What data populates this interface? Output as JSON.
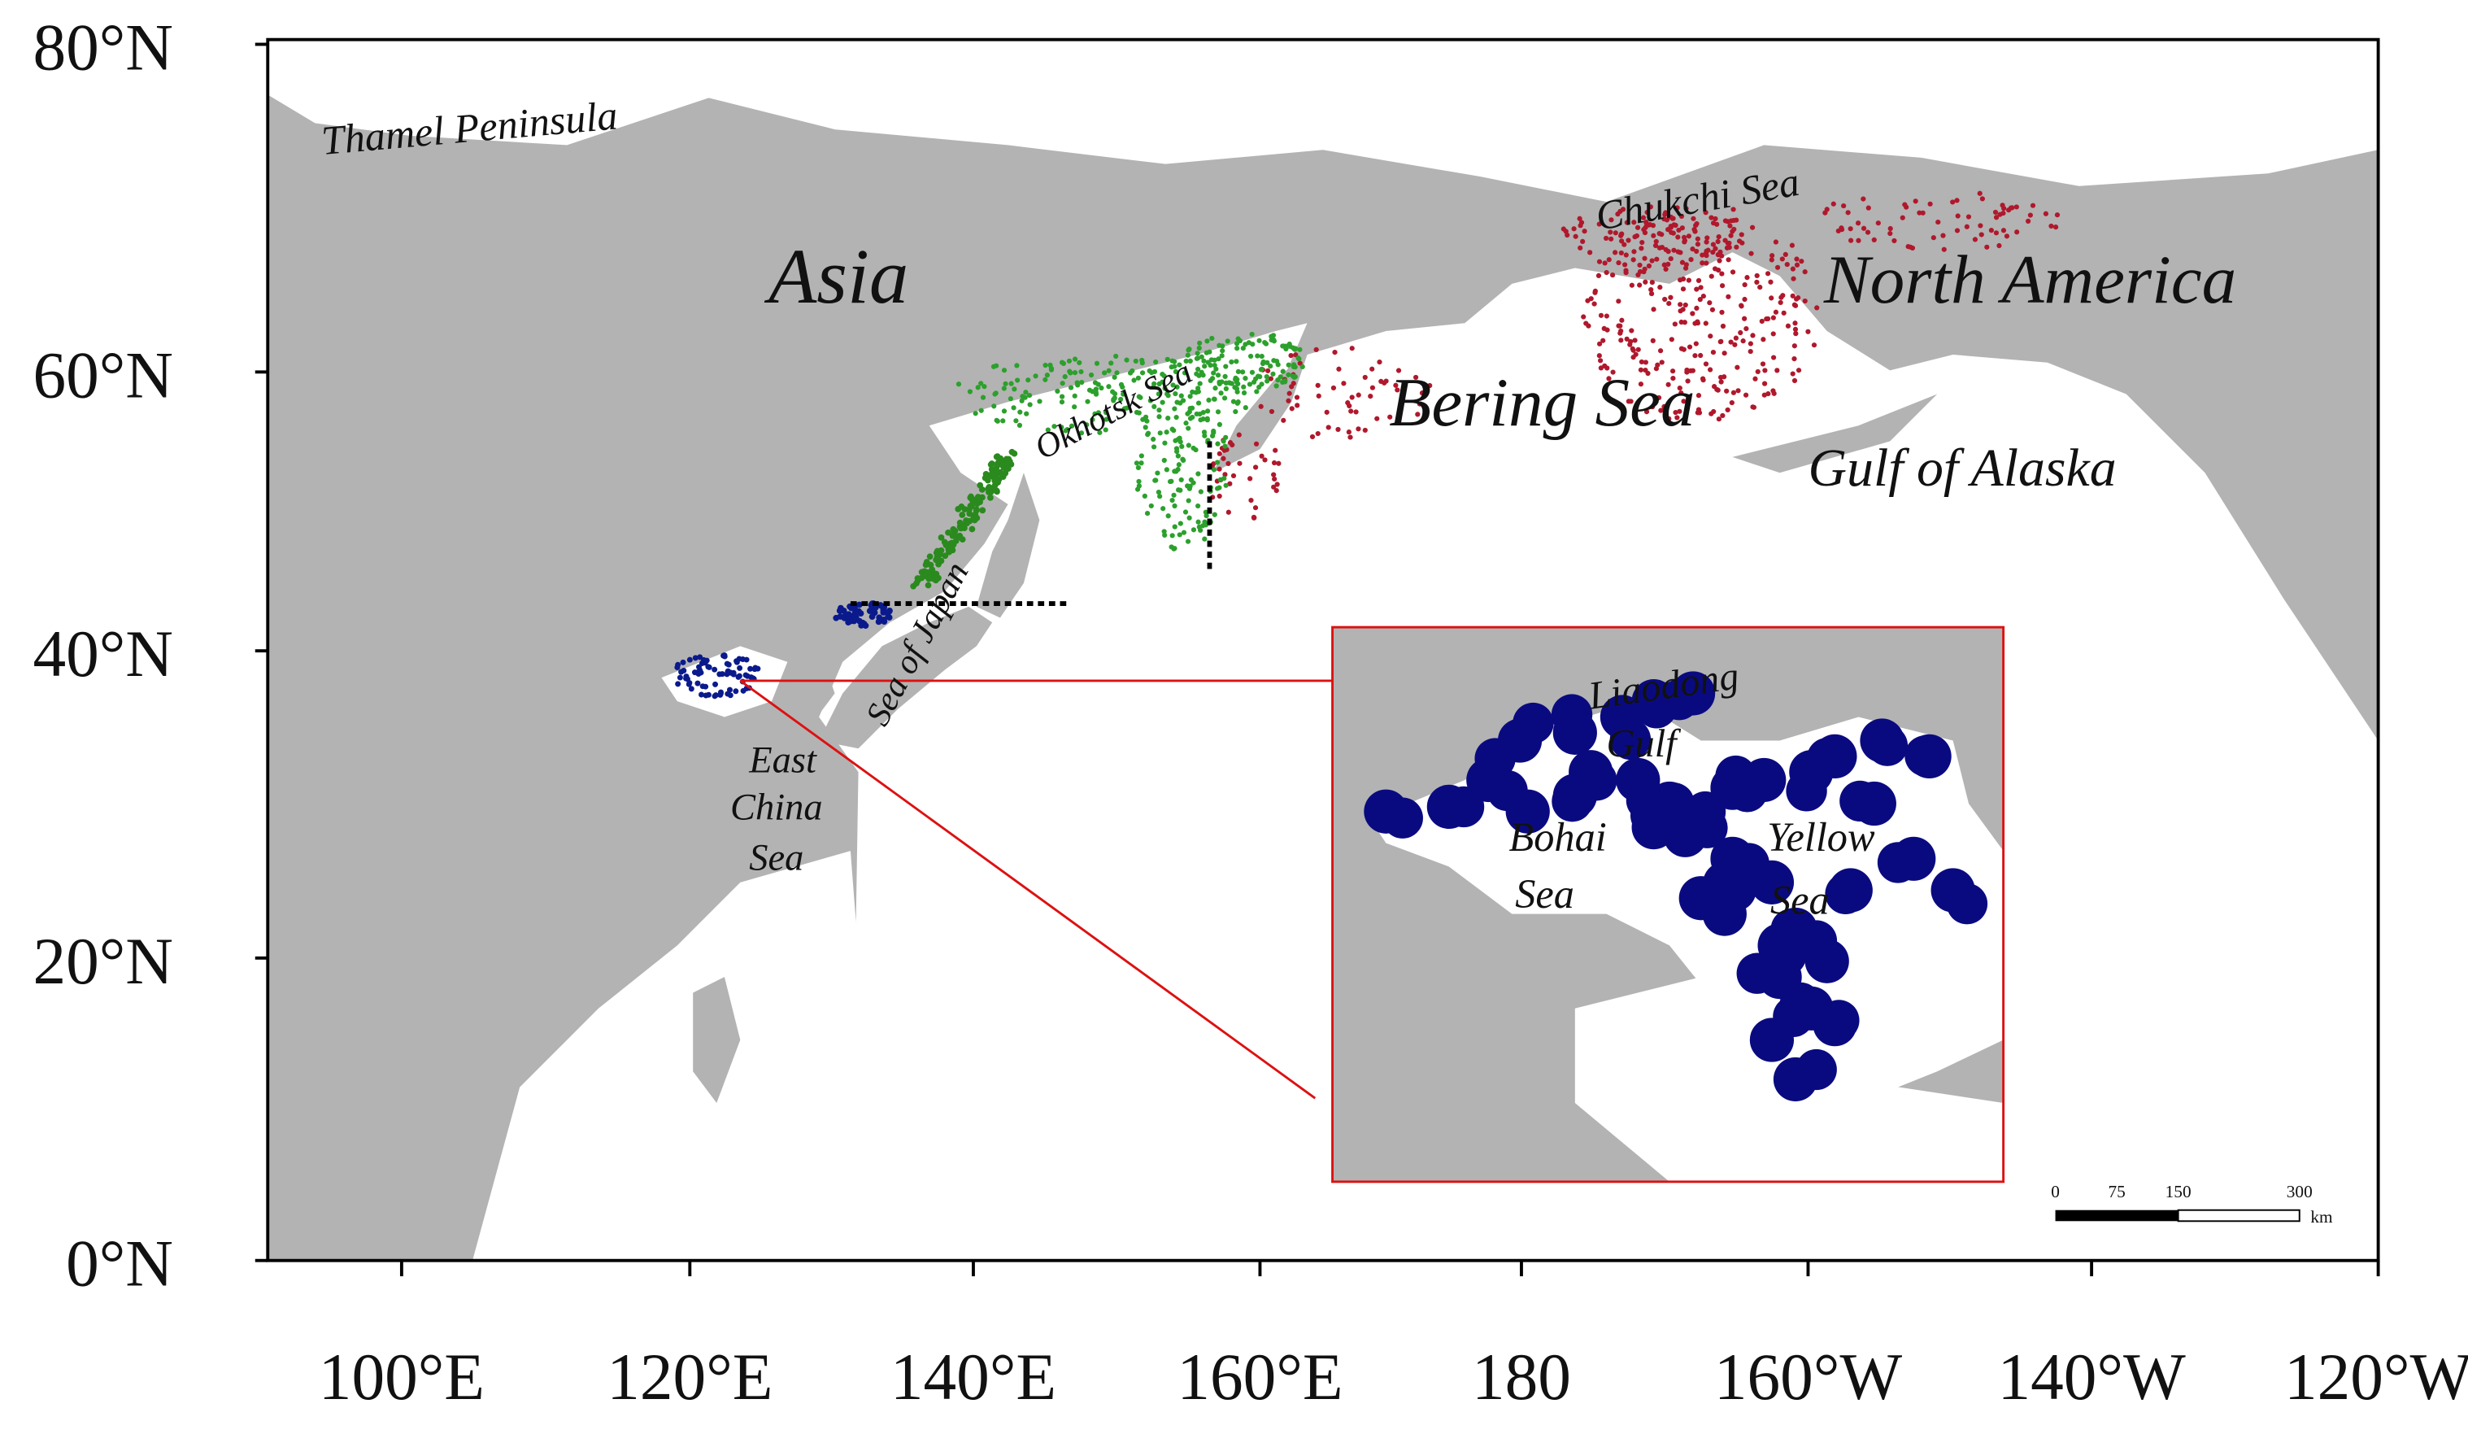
{
  "map": {
    "lat_labels": [
      "80°N",
      "60°N",
      "40°N",
      "20°N",
      "0°N"
    ],
    "lon_labels": [
      "100°E",
      "120°E",
      "140°E",
      "160°E",
      "180",
      "160°W",
      "140°W",
      "120°W"
    ],
    "labels": {
      "thamel": "Thamel Peninsula",
      "asia": "Asia",
      "north_america": "North America",
      "chukchi": "Chukchi Sea",
      "okhotsk": "Okhotsk Sea",
      "bering": "Bering Sea",
      "alaska": "Gulf of Alaska",
      "japan": "Sea of Japan",
      "east_china": [
        "East",
        "China",
        "Sea"
      ]
    },
    "inset": {
      "liaodong": [
        "Liaodong",
        "Gulf"
      ],
      "bohai": [
        "Bohai",
        "Sea"
      ],
      "yellow": [
        "Yellow",
        "Sea"
      ]
    },
    "scale_bar": {
      "ticks": [
        "0",
        "75",
        "150",
        "300"
      ],
      "unit": "km"
    }
  }
}
